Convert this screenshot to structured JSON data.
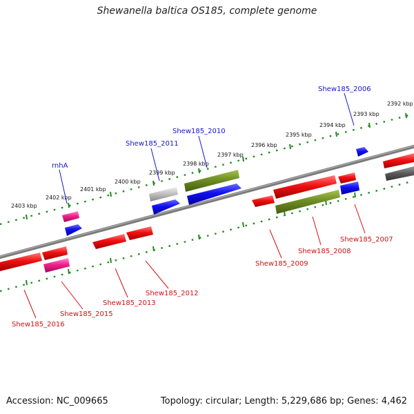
{
  "title": "Shewanella baltica OS185, complete genome",
  "footer": {
    "accession": "Accession: NC_009665",
    "summary": "Topology: circular; Length: 5,229,686 bp; Genes: 4,462"
  },
  "colors": {
    "cds": "#e8111a",
    "trna": "#e8268a",
    "rrna_like": "#1515e0",
    "olive": "#6f8e23",
    "gray": "#b8b8b8",
    "dark": "#555555",
    "backbone": "#777777",
    "tick": "#1d8a1d",
    "label_forward": "#1414c8",
    "label_reverse": "#cc1111"
  },
  "kbp_labels": [
    {
      "text": "2403 kbp"
    },
    {
      "text": "2402 kbp"
    },
    {
      "text": "2401 kbp"
    },
    {
      "text": "2400 kbp"
    },
    {
      "text": "2399 kbp"
    },
    {
      "text": "2398 kbp"
    },
    {
      "text": "2397 kbp"
    },
    {
      "text": "2396 kbp"
    },
    {
      "text": "2395 kbp"
    },
    {
      "text": "2394 kbp"
    },
    {
      "text": "2393 kbp"
    },
    {
      "text": "2392 kbp"
    }
  ],
  "gene_labels": [
    {
      "text": "rnhA",
      "strand": "forward"
    },
    {
      "text": "Shew185_2011",
      "strand": "forward"
    },
    {
      "text": "Shew185_2010",
      "strand": "forward"
    },
    {
      "text": "Shew185_2006",
      "strand": "forward"
    },
    {
      "text": "Shew185_2016",
      "strand": "reverse"
    },
    {
      "text": "Shew185_2015",
      "strand": "reverse"
    },
    {
      "text": "Shew185_2013",
      "strand": "reverse"
    },
    {
      "text": "Shew185_2012",
      "strand": "reverse"
    },
    {
      "text": "Shew185_2009",
      "strand": "reverse"
    },
    {
      "text": "Shew185_2008",
      "strand": "reverse"
    },
    {
      "text": "Shew185_2007",
      "strand": "reverse"
    }
  ]
}
